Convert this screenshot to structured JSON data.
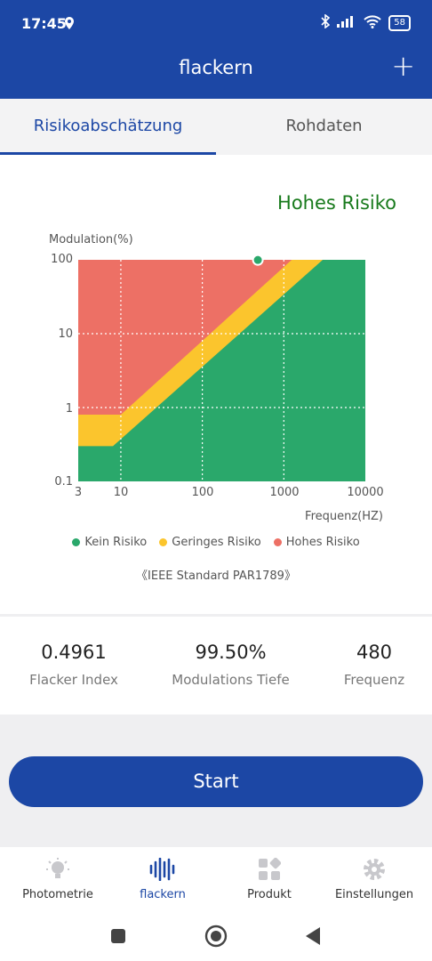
{
  "status_bar": {
    "time": "17:45",
    "battery": "58"
  },
  "header": {
    "title": "flackern",
    "add_icon": "+"
  },
  "tabs": [
    {
      "label": "Risikoabschätzung"
    },
    {
      "label": "Rohdaten"
    }
  ],
  "risk": {
    "label": "Hohes Risiko",
    "color": "#187a1c"
  },
  "chart_data": {
    "type": "area",
    "ylabel": "Modulation(%)",
    "xlabel": "Frequenz(HZ)",
    "x_scale": "log",
    "y_scale": "log",
    "x_ticks": [
      "3",
      "10",
      "100",
      "1000",
      "10000"
    ],
    "y_ticks": [
      "100",
      "10",
      "1",
      "0.1"
    ],
    "xlim": [
      3,
      10000
    ],
    "ylim": [
      0.1,
      100
    ],
    "grid": true,
    "series": [
      {
        "name": "Kein Risiko",
        "color": "#2aa86b",
        "boundary": [
          [
            3,
            0.3
          ],
          [
            8,
            0.3
          ],
          [
            3000,
            100
          ]
        ]
      },
      {
        "name": "Geringes Risiko",
        "color": "#fbc52d",
        "boundary": [
          [
            3,
            0.8
          ],
          [
            10,
            0.8
          ],
          [
            1250,
            100
          ]
        ]
      },
      {
        "name": "Hohes Risiko",
        "color": "#ed7065"
      }
    ],
    "measurement": {
      "x": 480,
      "y": 99.5
    },
    "note": "《IEEE Standard PAR1789》"
  },
  "metrics": [
    {
      "value": "0.4961",
      "label": "Flacker Index"
    },
    {
      "value": "99.50%",
      "label": "Modulations Tiefe"
    },
    {
      "value": "480",
      "label": "Frequenz"
    }
  ],
  "start_button": "Start",
  "bottom_nav": [
    {
      "label": "Photometrie",
      "icon": "bulb-icon"
    },
    {
      "label": "flackern",
      "icon": "waveform-icon",
      "active": true
    },
    {
      "label": "Produkt",
      "icon": "grid-icon"
    },
    {
      "label": "Einstellungen",
      "icon": "gear-icon"
    }
  ]
}
